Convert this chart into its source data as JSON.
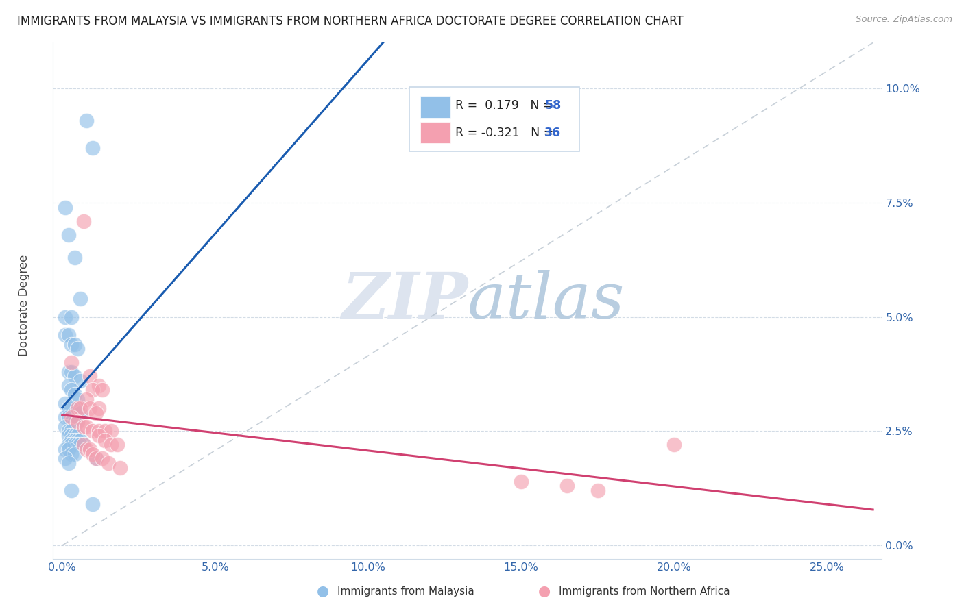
{
  "title": "IMMIGRANTS FROM MALAYSIA VS IMMIGRANTS FROM NORTHERN AFRICA DOCTORATE DEGREE CORRELATION CHART",
  "source": "Source: ZipAtlas.com",
  "ylabel_label": "Doctorate Degree",
  "x_ticks": [
    0.0,
    0.05,
    0.1,
    0.15,
    0.2,
    0.25
  ],
  "x_tick_labels": [
    "0.0%",
    "5.0%",
    "10.0%",
    "15.0%",
    "20.0%",
    "25.0%"
  ],
  "y_ticks": [
    0.0,
    0.025,
    0.05,
    0.075,
    0.1
  ],
  "y_tick_labels": [
    "0.0%",
    "2.5%",
    "5.0%",
    "7.5%",
    "10.0%"
  ],
  "xlim": [
    -0.003,
    0.268
  ],
  "ylim": [
    -0.003,
    0.11
  ],
  "legend1_r": " 0.179",
  "legend1_n": "58",
  "legend2_r": "-0.321",
  "legend2_n": "36",
  "color_blue": "#92c0e8",
  "color_pink": "#f4a0b0",
  "line_blue": "#1a5cb0",
  "line_pink": "#d04070",
  "line_dashed_color": "#b0bcc8",
  "background": "#ffffff",
  "watermark_zip": "ZIP",
  "watermark_atlas": "atlas",
  "series1_name": "Immigrants from Malaysia",
  "series2_name": "Immigrants from Northern Africa",
  "blue_x": [
    0.008,
    0.01,
    0.001,
    0.002,
    0.004,
    0.006,
    0.001,
    0.003,
    0.001,
    0.002,
    0.003,
    0.004,
    0.005,
    0.002,
    0.003,
    0.004,
    0.006,
    0.002,
    0.003,
    0.004,
    0.005,
    0.001,
    0.002,
    0.003,
    0.004,
    0.005,
    0.006,
    0.001,
    0.002,
    0.003,
    0.004,
    0.005,
    0.001,
    0.002,
    0.003,
    0.002,
    0.003,
    0.004,
    0.005,
    0.003,
    0.004,
    0.005,
    0.006,
    0.007,
    0.002,
    0.003,
    0.004,
    0.005,
    0.006,
    0.001,
    0.002,
    0.003,
    0.004,
    0.011,
    0.001,
    0.002,
    0.003,
    0.01
  ],
  "blue_y": [
    0.093,
    0.087,
    0.074,
    0.068,
    0.063,
    0.054,
    0.05,
    0.05,
    0.046,
    0.046,
    0.044,
    0.044,
    0.043,
    0.038,
    0.038,
    0.037,
    0.036,
    0.035,
    0.034,
    0.033,
    0.032,
    0.031,
    0.03,
    0.03,
    0.029,
    0.029,
    0.029,
    0.028,
    0.028,
    0.027,
    0.027,
    0.027,
    0.026,
    0.025,
    0.025,
    0.024,
    0.024,
    0.024,
    0.024,
    0.023,
    0.023,
    0.023,
    0.023,
    0.022,
    0.022,
    0.022,
    0.022,
    0.022,
    0.022,
    0.021,
    0.021,
    0.02,
    0.02,
    0.019,
    0.019,
    0.018,
    0.012,
    0.009
  ],
  "pink_x": [
    0.007,
    0.003,
    0.009,
    0.012,
    0.01,
    0.013,
    0.008,
    0.005,
    0.006,
    0.009,
    0.012,
    0.011,
    0.003,
    0.005,
    0.007,
    0.008,
    0.01,
    0.012,
    0.014,
    0.016,
    0.012,
    0.014,
    0.016,
    0.018,
    0.007,
    0.008,
    0.009,
    0.01,
    0.011,
    0.013,
    0.015,
    0.019,
    0.2,
    0.15,
    0.165,
    0.175
  ],
  "pink_y": [
    0.071,
    0.04,
    0.037,
    0.035,
    0.034,
    0.034,
    0.032,
    0.03,
    0.03,
    0.03,
    0.03,
    0.029,
    0.028,
    0.027,
    0.026,
    0.026,
    0.025,
    0.025,
    0.025,
    0.025,
    0.024,
    0.023,
    0.022,
    0.022,
    0.022,
    0.021,
    0.021,
    0.02,
    0.019,
    0.019,
    0.018,
    0.017,
    0.022,
    0.014,
    0.013,
    0.012
  ]
}
